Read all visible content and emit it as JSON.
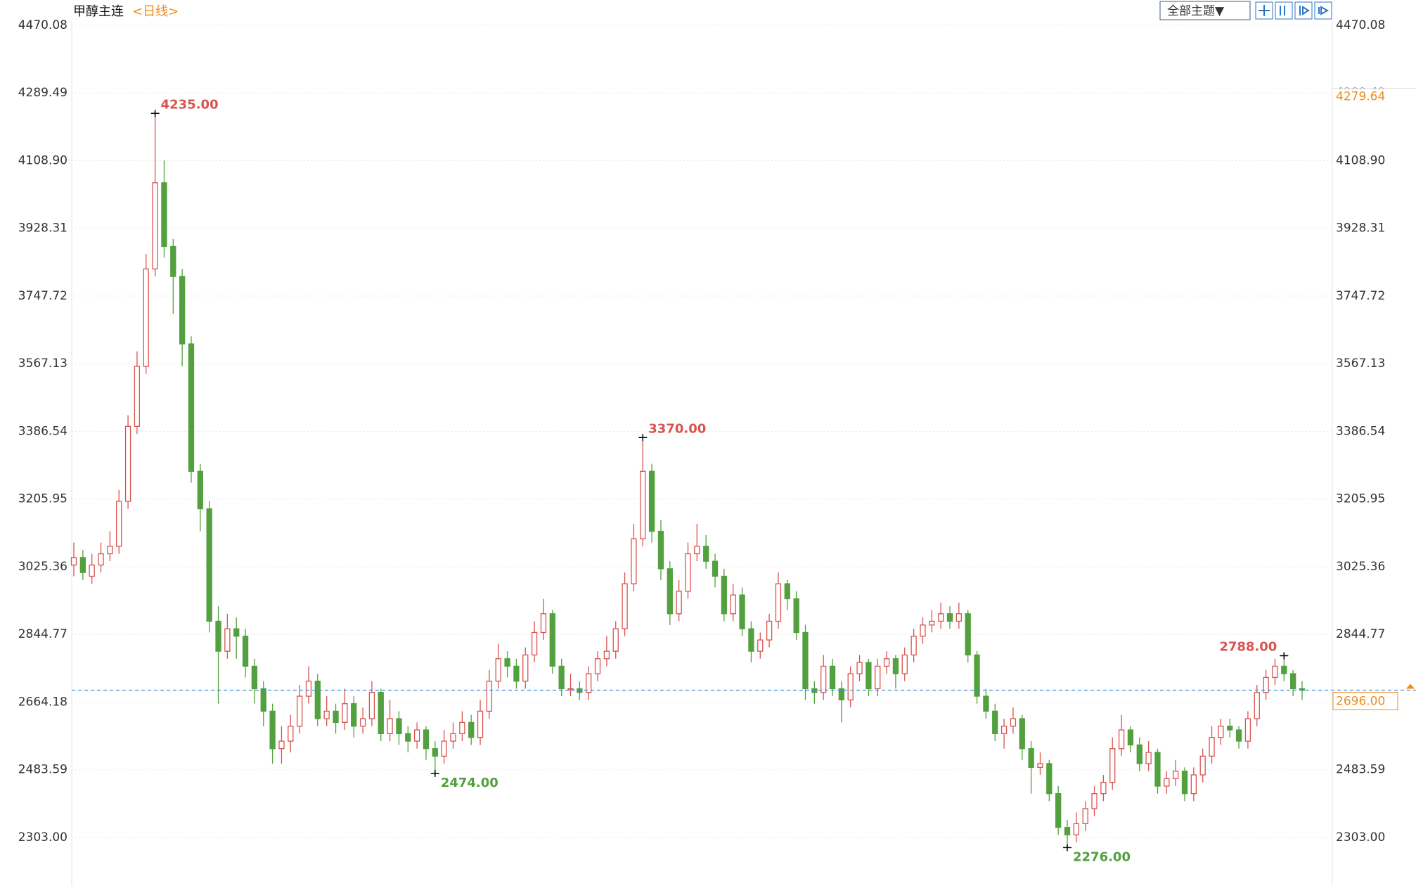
{
  "chart_data": {
    "type": "candlestick",
    "title": "甲醇主连",
    "period": "<日线>",
    "theme_button": "全部主题▼",
    "ylim": [
      2175.4,
      4537.6
    ],
    "yticks": [
      {
        "value": 2303,
        "label": "2303.00"
      },
      2483.59,
      2664.18,
      2844.77,
      3025.36,
      3205.95,
      3386.54,
      3567.13,
      3747.72,
      3928.31,
      {
        "value": 4108.9,
        "label": "4108.90"
      },
      4289.49,
      4470.08
    ],
    "grid": true,
    "up_color": "#d9534f",
    "down_color": "#52a03e",
    "last_line_color": "#3a8fd9",
    "marker_color": "#f08c1e",
    "marker_price": 4279.64,
    "last_price": {
      "value": 2696,
      "label": "2696.00"
    },
    "high_labels": [
      {
        "value": 4235,
        "label": "4235.00"
      },
      {
        "value": 3370,
        "label": "3370.00"
      },
      {
        "value": 2788,
        "label": "2788.00"
      }
    ],
    "low_labels": [
      {
        "value": 2474,
        "label": "2474.00"
      },
      {
        "value": 2276,
        "label": "2276.00"
      }
    ],
    "ohlc": [
      [
        3030,
        3090,
        3000,
        3050
      ],
      [
        3050,
        3070,
        2990,
        3010
      ],
      [
        3000,
        3060,
        2980,
        3030
      ],
      [
        3030,
        3090,
        3010,
        3060
      ],
      [
        3060,
        3120,
        3040,
        3080
      ],
      [
        3080,
        3230,
        3060,
        3200
      ],
      [
        3200,
        3430,
        3180,
        3400
      ],
      [
        3400,
        3600,
        3380,
        3560
      ],
      [
        3560,
        3860,
        3540,
        3820
      ],
      [
        3820,
        4235,
        3800,
        4050
      ],
      [
        4050,
        4110,
        3850,
        3880
      ],
      [
        3880,
        3900,
        3700,
        3800
      ],
      [
        3800,
        3820,
        3560,
        3620
      ],
      [
        3620,
        3640,
        3250,
        3280
      ],
      [
        3280,
        3300,
        3120,
        3180
      ],
      [
        3180,
        3200,
        2850,
        2880
      ],
      [
        2880,
        2920,
        2660,
        2800
      ],
      [
        2800,
        2900,
        2780,
        2860
      ],
      [
        2860,
        2890,
        2780,
        2840
      ],
      [
        2840,
        2860,
        2730,
        2760
      ],
      [
        2760,
        2780,
        2660,
        2700
      ],
      [
        2700,
        2720,
        2600,
        2640
      ],
      [
        2640,
        2660,
        2500,
        2540
      ],
      [
        2540,
        2600,
        2500,
        2560
      ],
      [
        2560,
        2630,
        2530,
        2600
      ],
      [
        2600,
        2710,
        2580,
        2680
      ],
      [
        2680,
        2760,
        2660,
        2720
      ],
      [
        2720,
        2740,
        2600,
        2620
      ],
      [
        2620,
        2680,
        2600,
        2640
      ],
      [
        2640,
        2660,
        2580,
        2610
      ],
      [
        2610,
        2700,
        2590,
        2660
      ],
      [
        2660,
        2680,
        2570,
        2600
      ],
      [
        2600,
        2650,
        2580,
        2620
      ],
      [
        2620,
        2720,
        2600,
        2690
      ],
      [
        2690,
        2700,
        2560,
        2580
      ],
      [
        2580,
        2670,
        2560,
        2620
      ],
      [
        2620,
        2640,
        2550,
        2580
      ],
      [
        2580,
        2600,
        2530,
        2560
      ],
      [
        2560,
        2610,
        2540,
        2590
      ],
      [
        2590,
        2600,
        2510,
        2540
      ],
      [
        2540,
        2560,
        2474,
        2520
      ],
      [
        2520,
        2590,
        2500,
        2560
      ],
      [
        2560,
        2610,
        2540,
        2580
      ],
      [
        2580,
        2640,
        2560,
        2610
      ],
      [
        2610,
        2630,
        2550,
        2570
      ],
      [
        2570,
        2670,
        2550,
        2640
      ],
      [
        2640,
        2750,
        2620,
        2720
      ],
      [
        2720,
        2820,
        2700,
        2780
      ],
      [
        2780,
        2800,
        2730,
        2760
      ],
      [
        2760,
        2780,
        2700,
        2720
      ],
      [
        2720,
        2810,
        2700,
        2790
      ],
      [
        2790,
        2880,
        2770,
        2850
      ],
      [
        2850,
        2940,
        2830,
        2900
      ],
      [
        2900,
        2910,
        2740,
        2760
      ],
      [
        2760,
        2780,
        2680,
        2700
      ],
      [
        2700,
        2740,
        2680,
        2700
      ],
      [
        2700,
        2720,
        2670,
        2690
      ],
      [
        2690,
        2760,
        2670,
        2740
      ],
      [
        2740,
        2800,
        2720,
        2780
      ],
      [
        2780,
        2840,
        2760,
        2800
      ],
      [
        2800,
        2880,
        2780,
        2860
      ],
      [
        2860,
        3010,
        2840,
        2980
      ],
      [
        2980,
        3140,
        2960,
        3100
      ],
      [
        3100,
        3370,
        3080,
        3280
      ],
      [
        3280,
        3300,
        3090,
        3120
      ],
      [
        3120,
        3150,
        2990,
        3020
      ],
      [
        3020,
        3040,
        2870,
        2900
      ],
      [
        2900,
        2990,
        2880,
        2960
      ],
      [
        2960,
        3090,
        2940,
        3060
      ],
      [
        3060,
        3140,
        3040,
        3080
      ],
      [
        3080,
        3110,
        3020,
        3040
      ],
      [
        3040,
        3060,
        2970,
        3000
      ],
      [
        3000,
        3020,
        2880,
        2900
      ],
      [
        2900,
        2980,
        2880,
        2950
      ],
      [
        2950,
        2970,
        2840,
        2860
      ],
      [
        2860,
        2880,
        2770,
        2800
      ],
      [
        2800,
        2850,
        2780,
        2830
      ],
      [
        2830,
        2900,
        2810,
        2880
      ],
      [
        2880,
        3010,
        2860,
        2980
      ],
      [
        2980,
        2990,
        2910,
        2940
      ],
      [
        2940,
        2960,
        2830,
        2850
      ],
      [
        2850,
        2870,
        2670,
        2700
      ],
      [
        2700,
        2720,
        2660,
        2690
      ],
      [
        2690,
        2790,
        2670,
        2760
      ],
      [
        2760,
        2780,
        2680,
        2700
      ],
      [
        2700,
        2720,
        2610,
        2670
      ],
      [
        2670,
        2760,
        2650,
        2740
      ],
      [
        2740,
        2790,
        2720,
        2770
      ],
      [
        2770,
        2780,
        2680,
        2700
      ],
      [
        2700,
        2780,
        2680,
        2760
      ],
      [
        2760,
        2800,
        2740,
        2780
      ],
      [
        2780,
        2790,
        2700,
        2740
      ],
      [
        2740,
        2810,
        2720,
        2790
      ],
      [
        2790,
        2860,
        2770,
        2840
      ],
      [
        2840,
        2890,
        2820,
        2870
      ],
      [
        2870,
        2910,
        2850,
        2880
      ],
      [
        2880,
        2930,
        2860,
        2900
      ],
      [
        2900,
        2920,
        2860,
        2880
      ],
      [
        2880,
        2930,
        2860,
        2900
      ],
      [
        2900,
        2910,
        2770,
        2790
      ],
      [
        2790,
        2800,
        2660,
        2680
      ],
      [
        2680,
        2700,
        2620,
        2640
      ],
      [
        2640,
        2660,
        2560,
        2580
      ],
      [
        2580,
        2620,
        2540,
        2600
      ],
      [
        2600,
        2650,
        2580,
        2620
      ],
      [
        2620,
        2630,
        2510,
        2540
      ],
      [
        2540,
        2560,
        2420,
        2490
      ],
      [
        2490,
        2530,
        2470,
        2500
      ],
      [
        2500,
        2510,
        2400,
        2420
      ],
      [
        2420,
        2440,
        2310,
        2330
      ],
      [
        2330,
        2350,
        2276,
        2310
      ],
      [
        2310,
        2370,
        2290,
        2340
      ],
      [
        2340,
        2400,
        2320,
        2380
      ],
      [
        2380,
        2440,
        2360,
        2420
      ],
      [
        2420,
        2470,
        2400,
        2450
      ],
      [
        2450,
        2570,
        2430,
        2540
      ],
      [
        2540,
        2630,
        2520,
        2590
      ],
      [
        2590,
        2600,
        2530,
        2550
      ],
      [
        2550,
        2570,
        2480,
        2500
      ],
      [
        2500,
        2560,
        2480,
        2530
      ],
      [
        2530,
        2540,
        2420,
        2440
      ],
      [
        2440,
        2480,
        2420,
        2460
      ],
      [
        2460,
        2510,
        2440,
        2480
      ],
      [
        2480,
        2490,
        2400,
        2420
      ],
      [
        2420,
        2490,
        2400,
        2470
      ],
      [
        2470,
        2540,
        2450,
        2520
      ],
      [
        2520,
        2600,
        2500,
        2570
      ],
      [
        2570,
        2620,
        2550,
        2600
      ],
      [
        2600,
        2620,
        2570,
        2590
      ],
      [
        2590,
        2600,
        2540,
        2560
      ],
      [
        2560,
        2640,
        2540,
        2620
      ],
      [
        2620,
        2710,
        2600,
        2690
      ],
      [
        2690,
        2750,
        2670,
        2730
      ],
      [
        2730,
        2780,
        2710,
        2760
      ],
      [
        2760,
        2788,
        2720,
        2740
      ],
      [
        2740,
        2750,
        2680,
        2700
      ],
      [
        2700,
        2720,
        2670,
        2696
      ]
    ]
  }
}
